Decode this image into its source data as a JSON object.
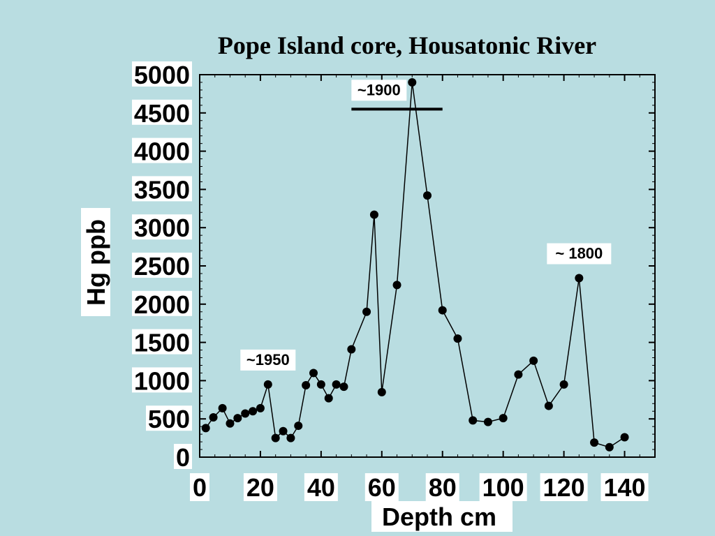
{
  "chart_data": {
    "type": "line",
    "title": "Pope Island core, Housatonic River",
    "xlabel": "Depth cm",
    "ylabel": "Hg ppb",
    "xlim": [
      0,
      150
    ],
    "ylim": [
      0,
      5000
    ],
    "x_ticks": [
      0,
      20,
      40,
      60,
      80,
      100,
      120,
      140
    ],
    "y_ticks": [
      0,
      500,
      1000,
      1500,
      2000,
      2500,
      3000,
      3500,
      4000,
      4500,
      5000
    ],
    "grid": false,
    "marker": "circle",
    "series": [
      {
        "x": [
          2,
          4.5,
          7.5,
          10,
          12.5,
          15,
          17.5,
          20,
          22.5,
          25,
          27.5,
          30,
          32.5,
          35,
          37.5,
          40,
          42.5,
          45,
          47.5,
          50,
          55,
          57.5,
          60,
          65,
          70,
          75,
          80,
          85,
          90,
          95,
          100,
          105,
          110,
          115,
          120,
          125,
          130,
          135,
          140
        ],
        "y": [
          380,
          520,
          640,
          440,
          510,
          570,
          600,
          640,
          950,
          250,
          340,
          250,
          410,
          940,
          1100,
          950,
          770,
          950,
          920,
          1410,
          1900,
          3170,
          850,
          2250,
          4900,
          3420,
          1920,
          1550,
          480,
          460,
          510,
          1080,
          1260,
          670,
          950,
          2340,
          190,
          130,
          260
        ]
      }
    ],
    "annotations": [
      {
        "text": "~1950",
        "x": 22.5,
        "y": 950
      },
      {
        "text": "~1900",
        "x": 60,
        "y": 4550,
        "span": [
          50,
          80
        ]
      },
      {
        "text": "~ 1800",
        "x": 125,
        "y": 2340
      }
    ]
  }
}
